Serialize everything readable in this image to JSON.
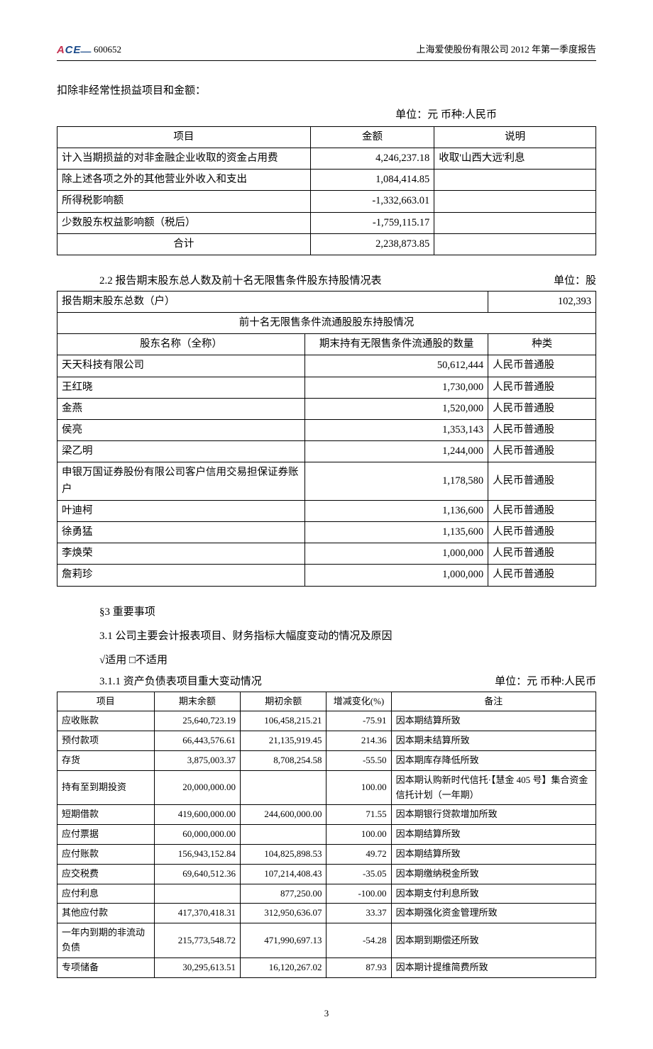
{
  "header": {
    "logo_text": "ACE",
    "stock_code": "600652",
    "report_title": "上海爱使股份有限公司 2012 年第一季度报告"
  },
  "intro_text": "扣除非经常性损益项目和金额：",
  "table1_unit": "单位：元 币种:人民币",
  "table1": {
    "columns": [
      "项目",
      "金额",
      "说明"
    ],
    "rows": [
      [
        "计入当期损益的对非金融企业收取的资金占用费",
        "4,246,237.18",
        "收取'山西大远'利息"
      ],
      [
        "除上述各项之外的其他营业外收入和支出",
        "1,084,414.85",
        ""
      ],
      [
        "所得税影响额",
        "-1,332,663.01",
        ""
      ],
      [
        "少数股东权益影响额（税后）",
        "-1,759,115.17",
        ""
      ],
      [
        "合计",
        "2,238,873.85",
        ""
      ]
    ],
    "col_widths": [
      "47%",
      "23%",
      "30%"
    ],
    "col_aligns": [
      "left",
      "right",
      "left"
    ],
    "last_row_align": "center"
  },
  "section22_heading": "2.2 报告期末股东总人数及前十名无限售条件股东持股情况表",
  "section22_unit": "单位：股",
  "table2": {
    "total_label": "报告期末股东总数（户）",
    "total_value": "102,393",
    "subheading": "前十名无限售条件流通股股东持股情况",
    "columns": [
      "股东名称（全称）",
      "期末持有无限售条件流通股的数量",
      "种类"
    ],
    "rows": [
      [
        "天天科技有限公司",
        "50,612,444",
        "人民币普通股"
      ],
      [
        "王红晓",
        "1,730,000",
        "人民币普通股"
      ],
      [
        "金燕",
        "1,520,000",
        "人民币普通股"
      ],
      [
        "侯亮",
        "1,353,143",
        "人民币普通股"
      ],
      [
        "梁乙明",
        "1,244,000",
        "人民币普通股"
      ],
      [
        "申银万国证券股份有限公司客户信用交易担保证券账户",
        "1,178,580",
        "人民币普通股"
      ],
      [
        "叶迪柯",
        "1,136,600",
        "人民币普通股"
      ],
      [
        "徐勇猛",
        "1,135,600",
        "人民币普通股"
      ],
      [
        "李焕荣",
        "1,000,000",
        "人民币普通股"
      ],
      [
        "詹莉珍",
        "1,000,000",
        "人民币普通股"
      ]
    ],
    "col_widths": [
      "46%",
      "34%",
      "20%"
    ]
  },
  "section3_heading": "§3 重要事项",
  "section31_heading": "3.1 公司主要会计报表项目、财务指标大幅度变动的情况及原因",
  "checkbox_text": "√适用  □不适用",
  "section311_heading": "3.1.1 资产负债表项目重大变动情况",
  "section311_unit": "单位：元 币种:人民币",
  "table3": {
    "columns": [
      "项目",
      "期末余额",
      "期初余额",
      "增减变化(%)",
      "备注"
    ],
    "rows": [
      [
        "应收账款",
        "25,640,723.19",
        "106,458,215.21",
        "-75.91",
        "因本期结算所致"
      ],
      [
        "预付款项",
        "66,443,576.61",
        "21,135,919.45",
        "214.36",
        "因本期未结算所致"
      ],
      [
        "存货",
        "3,875,003.37",
        "8,708,254.58",
        "-55.50",
        "因本期库存降低所致"
      ],
      [
        "持有至到期投资",
        "20,000,000.00",
        "",
        "100.00",
        "因本期认购新时代信托·【慧金 405 号】集合资金信托计划（一年期）"
      ],
      [
        "短期借款",
        "419,600,000.00",
        "244,600,000.00",
        "71.55",
        "因本期银行贷款增加所致"
      ],
      [
        "应付票据",
        "60,000,000.00",
        "",
        "100.00",
        "因本期结算所致"
      ],
      [
        "应付账款",
        "156,943,152.84",
        "104,825,898.53",
        "49.72",
        "因本期结算所致"
      ],
      [
        "应交税费",
        "69,640,512.36",
        "107,214,408.43",
        "-35.05",
        "因本期缴纳税金所致"
      ],
      [
        "应付利息",
        "",
        "877,250.00",
        "-100.00",
        "因本期支付利息所致"
      ],
      [
        "其他应付款",
        "417,370,418.31",
        "312,950,636.07",
        "33.37",
        "因本期强化资金管理所致"
      ],
      [
        "一年内到期的非流动负债",
        "215,773,548.72",
        "471,990,697.13",
        "-54.28",
        "因本期到期偿还所致"
      ],
      [
        "专项储备",
        "30,295,613.51",
        "16,120,267.02",
        "87.93",
        "因本期计提维简费所致"
      ]
    ],
    "col_widths": [
      "18%",
      "16%",
      "16%",
      "12%",
      "38%"
    ],
    "col_aligns": [
      "left",
      "right",
      "right",
      "right",
      "left"
    ]
  },
  "page_number": "3"
}
